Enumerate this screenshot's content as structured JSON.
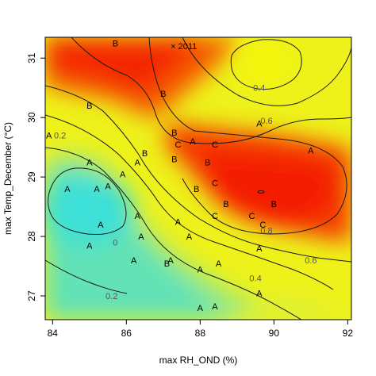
{
  "chart_data": {
    "type": "heatmap",
    "title": "",
    "xlabel": "max RH_OND (%)",
    "ylabel": "max Temp_December (°C)",
    "xlim": [
      83.8,
      92.1
    ],
    "ylim": [
      26.6,
      31.35
    ],
    "x_ticks": [
      "84",
      "86",
      "88",
      "90",
      "92"
    ],
    "y_ticks": [
      "27",
      "28",
      "29",
      "30",
      "31"
    ],
    "x_tick_values": [
      84,
      86,
      88,
      90,
      92
    ],
    "y_tick_values": [
      27,
      28,
      29,
      30,
      31
    ],
    "color_scale": {
      "low": "#40e0d0",
      "mid": "#f7f70a",
      "high": "#f41800",
      "range": [
        -0.1,
        1.0
      ]
    },
    "grid": false,
    "contour_levels": [
      {
        "level": 0,
        "label": "0",
        "x": 85.7,
        "y": 27.9
      },
      {
        "level": 0.2,
        "label": "0.2",
        "x": 84.2,
        "y": 29.7
      },
      {
        "level": 0.2,
        "label": "0.2",
        "x": 85.6,
        "y": 27.0
      },
      {
        "level": 0.4,
        "label": "0.4",
        "x": 89.6,
        "y": 30.5
      },
      {
        "level": 0.4,
        "label": "0.4",
        "x": 89.5,
        "y": 27.3
      },
      {
        "level": 0.6,
        "label": "0.6",
        "x": 89.8,
        "y": 29.95
      },
      {
        "level": 0.6,
        "label": "0.6",
        "x": 91.0,
        "y": 27.6
      },
      {
        "level": 0.8,
        "label": "0.8",
        "x": 89.8,
        "y": 28.1
      }
    ],
    "points": [
      {
        "x": 85.7,
        "y": 31.25,
        "label": "B"
      },
      {
        "x": 85.0,
        "y": 30.2,
        "label": "B"
      },
      {
        "x": 87.0,
        "y": 30.4,
        "label": "B"
      },
      {
        "x": 83.9,
        "y": 29.7,
        "label": "A"
      },
      {
        "x": 85.0,
        "y": 29.25,
        "label": "A"
      },
      {
        "x": 84.4,
        "y": 28.8,
        "label": "A"
      },
      {
        "x": 85.2,
        "y": 28.8,
        "label": "A"
      },
      {
        "x": 85.9,
        "y": 29.05,
        "label": "A"
      },
      {
        "x": 85.5,
        "y": 28.85,
        "label": "A"
      },
      {
        "x": 85.3,
        "y": 28.2,
        "label": "A"
      },
      {
        "x": 85.0,
        "y": 27.85,
        "label": "A"
      },
      {
        "x": 86.3,
        "y": 28.35,
        "label": "A"
      },
      {
        "x": 86.4,
        "y": 28.0,
        "label": "A"
      },
      {
        "x": 86.2,
        "y": 27.6,
        "label": "A"
      },
      {
        "x": 86.3,
        "y": 29.25,
        "label": "A"
      },
      {
        "x": 86.5,
        "y": 29.4,
        "label": "B"
      },
      {
        "x": 87.3,
        "y": 29.75,
        "label": "B"
      },
      {
        "x": 87.3,
        "y": 29.3,
        "label": "B"
      },
      {
        "x": 87.4,
        "y": 29.55,
        "label": "C"
      },
      {
        "x": 87.8,
        "y": 29.6,
        "label": "A"
      },
      {
        "x": 88.4,
        "y": 29.55,
        "label": "C"
      },
      {
        "x": 88.2,
        "y": 29.25,
        "label": "B"
      },
      {
        "x": 88.4,
        "y": 28.9,
        "label": "C"
      },
      {
        "x": 87.9,
        "y": 28.8,
        "label": "B"
      },
      {
        "x": 88.7,
        "y": 28.55,
        "label": "B"
      },
      {
        "x": 88.4,
        "y": 28.35,
        "label": "C"
      },
      {
        "x": 87.4,
        "y": 28.25,
        "label": "A"
      },
      {
        "x": 87.7,
        "y": 28.0,
        "label": "A"
      },
      {
        "x": 89.4,
        "y": 28.35,
        "label": "C"
      },
      {
        "x": 89.7,
        "y": 28.2,
        "label": "C"
      },
      {
        "x": 90.0,
        "y": 28.55,
        "label": "B"
      },
      {
        "x": 89.6,
        "y": 29.9,
        "label": "A"
      },
      {
        "x": 91.0,
        "y": 29.45,
        "label": "A"
      },
      {
        "x": 87.2,
        "y": 27.6,
        "label": "A"
      },
      {
        "x": 87.1,
        "y": 27.55,
        "label": "B"
      },
      {
        "x": 88.0,
        "y": 27.45,
        "label": "A"
      },
      {
        "x": 88.5,
        "y": 27.55,
        "label": "A"
      },
      {
        "x": 89.6,
        "y": 27.8,
        "label": "A"
      },
      {
        "x": 89.6,
        "y": 27.05,
        "label": "A"
      },
      {
        "x": 88.0,
        "y": 26.8,
        "label": "A"
      },
      {
        "x": 88.4,
        "y": 26.83,
        "label": "A"
      }
    ],
    "annotations": [
      {
        "x": 87.2,
        "y": 31.2,
        "text": "× 2011"
      }
    ]
  }
}
